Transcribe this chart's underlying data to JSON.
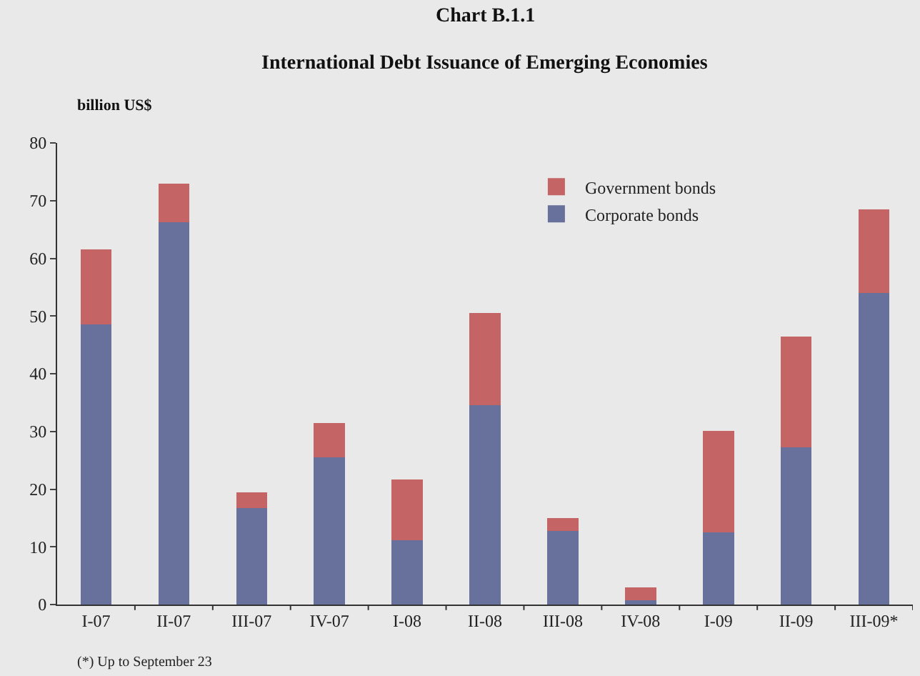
{
  "chart_data": {
    "type": "bar",
    "title": "Chart B.1.1",
    "subtitle": "International Debt Issuance of Emerging Economies",
    "ylabel": "billion US$",
    "categories": [
      "I-07",
      "II-07",
      "III-07",
      "IV-07",
      "I-08",
      "II-08",
      "III-08",
      "IV-08",
      "I-09",
      "II-09",
      "III-09*"
    ],
    "series": [
      {
        "name": "Corporate bonds",
        "color": "#68719b",
        "values": [
          48.5,
          66.2,
          16.7,
          25.5,
          11.2,
          34.5,
          12.7,
          0.8,
          12.5,
          27.3,
          54.0
        ]
      },
      {
        "name": "Government bonds",
        "color": "#c46464",
        "values": [
          13.0,
          6.8,
          2.7,
          5.9,
          10.5,
          16.0,
          2.3,
          2.2,
          17.6,
          19.2,
          14.5
        ]
      }
    ],
    "stacked": true,
    "ylim": [
      0,
      80
    ],
    "yticks": [
      0,
      10,
      20,
      30,
      40,
      50,
      60,
      70,
      80
    ],
    "grid": false,
    "legend": "top right",
    "annotations": [
      "(*) Up to September 23"
    ]
  }
}
